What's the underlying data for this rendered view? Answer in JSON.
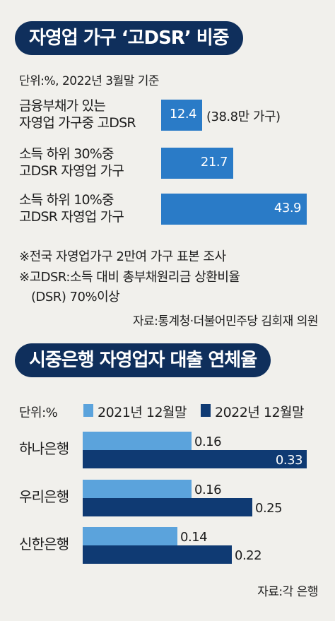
{
  "chart_data": [
    {
      "type": "bar",
      "orientation": "horizontal",
      "title": "자영업 가구 ‘고DSR’ 비중",
      "unit_note": "단위:%, 2022년 3월말 기준",
      "categories": [
        [
          "금융부채가 있는",
          "자영업 가구중 고DSR"
        ],
        [
          "소득 하위 30%중",
          "고DSR 자영업 가구"
        ],
        [
          "소득 하위 10%중",
          "고DSR 자영업 가구"
        ]
      ],
      "values": [
        12.4,
        21.7,
        43.9
      ],
      "value_labels": [
        "12.4",
        "21.7",
        "43.9"
      ],
      "annotation": "(38.8만 가구)",
      "xlim": [
        0,
        43.9
      ],
      "bar_color": "#2a7bc7",
      "notes": [
        "※전국 자영업가구 2만여 가구 표본 조사",
        "※고DSR:소득 대비 총부채원리금 상환비율",
        "(DSR) 70%이상"
      ],
      "source": "자료:통계청·더불어민주당 김회재 의원"
    },
    {
      "type": "bar",
      "orientation": "horizontal",
      "title": "시중은행 자영업자 대출 연체율",
      "unit_note": "단위:%",
      "categories": [
        "하나은행",
        "우리은행",
        "신한은행"
      ],
      "series": [
        {
          "name": "2021년 12월말",
          "values": [
            0.16,
            0.16,
            0.14
          ],
          "color": "#5ba3dc"
        },
        {
          "name": "2022년 12월말",
          "values": [
            0.33,
            0.25,
            0.22
          ],
          "color": "#0f3a73"
        }
      ],
      "value_labels": [
        [
          "0.16",
          "0.16",
          "0.14"
        ],
        [
          "0.33",
          "0.25",
          "0.22"
        ]
      ],
      "xlim": [
        0,
        0.33
      ],
      "source": "자료:각 은행"
    }
  ],
  "colors": {
    "background": "#f1f0ec",
    "title_pill": "#0f2f5c",
    "title_text": "#ffffff"
  }
}
